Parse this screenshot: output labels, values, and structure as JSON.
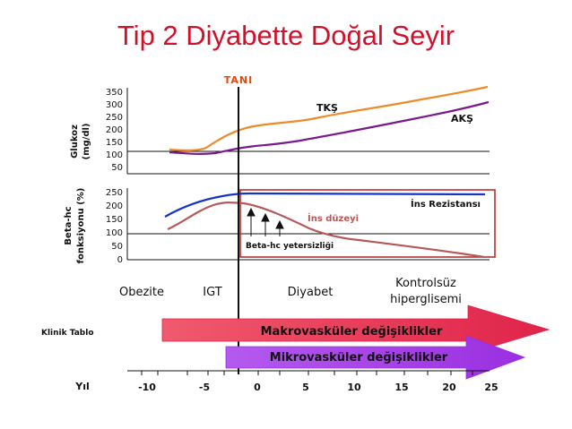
{
  "title": "Tip 2 Diyabette Doğal Seyir",
  "diagnosis_label": "TANI",
  "glucose_panel": {
    "ylabel_line1": "Glukoz",
    "ylabel_line2": "(mg/dl)",
    "ticks": [
      "350",
      "300",
      "250",
      "200",
      "150",
      "100",
      "50"
    ],
    "series": [
      {
        "name": "TKŞ",
        "color": "#ee8a2a"
      },
      {
        "name": "AKŞ",
        "color": "#7a1a8c"
      }
    ]
  },
  "beta_panel": {
    "ylabel_line1": "Beta-hc",
    "ylabel_line2": "fonksiyonu (%)",
    "ticks": [
      "250",
      "200",
      "150",
      "100",
      "50",
      "0"
    ],
    "labels": {
      "insulin_resistance": "İns Rezistansı",
      "insulin_level": "İns düzeyi",
      "beta_failure": "Beta-hc yetersizliği"
    },
    "colors": {
      "resistance": "#1535c9",
      "insulin": "#b55a5a",
      "box": "#b53030"
    }
  },
  "stages": {
    "obese": "Obezite",
    "igt": "IGT",
    "diabetes": "Diyabet",
    "uncontrolled_line1": "Kontrolsüz",
    "uncontrolled_line2": "hiperglisemi"
  },
  "clinical": {
    "label": "Klinik Tablo",
    "macro": {
      "text": "Makrovasküler değişiklikler",
      "color": "#e63856"
    },
    "micro": {
      "text": "Mikrovasküler değişiklikler",
      "color": "#a53ae2"
    }
  },
  "year_axis": {
    "label": "Yıl",
    "ticks": [
      "-10",
      "-5",
      "0",
      "5",
      "10",
      "15",
      "20",
      "25"
    ]
  },
  "colors": {
    "title": "#d0112b",
    "tani": "#e04a10",
    "axis": "#111111"
  }
}
